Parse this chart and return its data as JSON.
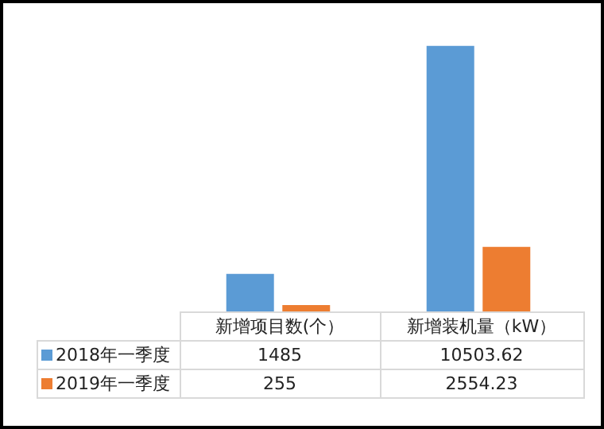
{
  "chart_data": {
    "type": "bar",
    "categories": [
      "新增项目数(个）",
      "新增装机量（kW）"
    ],
    "series": [
      {
        "name": "2018年一季度",
        "color": "#5b9bd5",
        "values": [
          1485,
          10503.62
        ]
      },
      {
        "name": "2019年一季度",
        "color": "#ed7d31",
        "values": [
          255,
          2554.23
        ]
      }
    ],
    "data_labels": true,
    "legend": "bottom"
  }
}
